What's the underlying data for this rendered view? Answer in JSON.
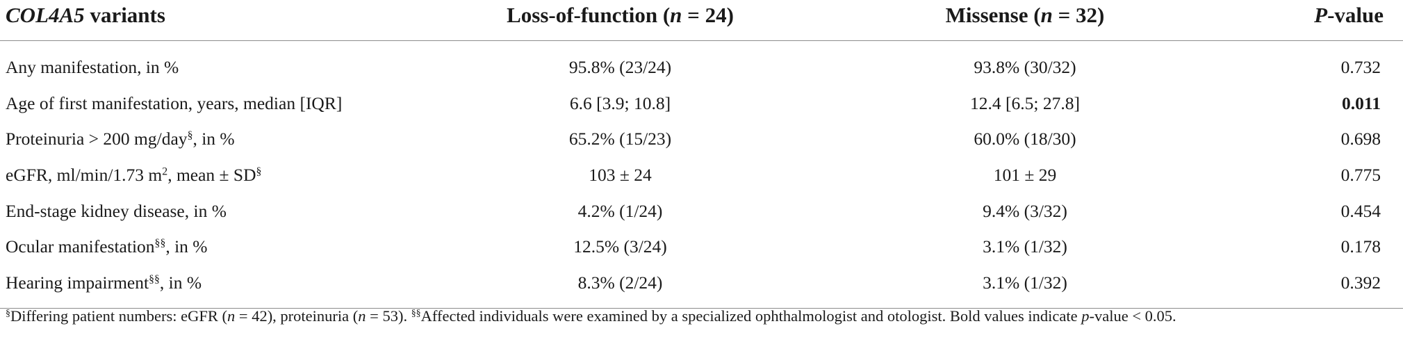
{
  "table": {
    "headers": [
      {
        "italic": "COL4A5",
        "rest": " variants"
      },
      {
        "pre": "Loss-of-function (",
        "italic": "n",
        "post": " = 24)"
      },
      {
        "pre": "Missense (",
        "italic": "n",
        "post": " = 32)"
      },
      {
        "italic": "P",
        "rest": "-value"
      }
    ],
    "rows": [
      {
        "label": {
          "pre": "Any manifestation, in %",
          "sup": "",
          "post": ""
        },
        "lof": "95.8% (23/24)",
        "missense": "93.8% (30/32)",
        "p": "0.732",
        "p_bold": false
      },
      {
        "label": {
          "pre": "Age of first manifestation, years, median [IQR]",
          "sup": "",
          "post": ""
        },
        "lof": "6.6 [3.9; 10.8]",
        "missense": "12.4 [6.5; 27.8]",
        "p": "0.011",
        "p_bold": true
      },
      {
        "label": {
          "pre": "Proteinuria > 200 mg/day",
          "sup": "§",
          "post": ", in %"
        },
        "lof": "65.2% (15/23)",
        "missense": "60.0% (18/30)",
        "p": "0.698",
        "p_bold": false
      },
      {
        "label": {
          "pre": "eGFR, ml/min/1.73 m",
          "sup": "2",
          "post": ", mean ± SD",
          "sup2": "§"
        },
        "lof": "103 ± 24",
        "missense": "101 ± 29",
        "p": "0.775",
        "p_bold": false
      },
      {
        "label": {
          "pre": "End-stage kidney disease, in %",
          "sup": "",
          "post": ""
        },
        "lof": "4.2% (1/24)",
        "missense": "9.4% (3/32)",
        "p": "0.454",
        "p_bold": false
      },
      {
        "label": {
          "pre": "Ocular manifestation",
          "sup": "§§",
          "post": ", in %"
        },
        "lof": "12.5% (3/24)",
        "missense": "3.1% (1/32)",
        "p": "0.178",
        "p_bold": false
      },
      {
        "label": {
          "pre": "Hearing impairment",
          "sup": "§§",
          "post": ", in %"
        },
        "lof": "8.3% (2/24)",
        "missense": "3.1% (1/32)",
        "p": "0.392",
        "p_bold": false
      }
    ]
  },
  "footnote": {
    "sup1": "§",
    "text1": "Differing patient numbers: eGFR (",
    "n1": "n",
    "text2": " = 42), proteinuria (",
    "n2": "n",
    "text3": " = 53). ",
    "sup2": "§§",
    "text4": "Affected individuals were examined by a specialized ophthalmologist and otologist. Bold values indicate ",
    "p": "p",
    "text5": "-value < 0.05."
  }
}
